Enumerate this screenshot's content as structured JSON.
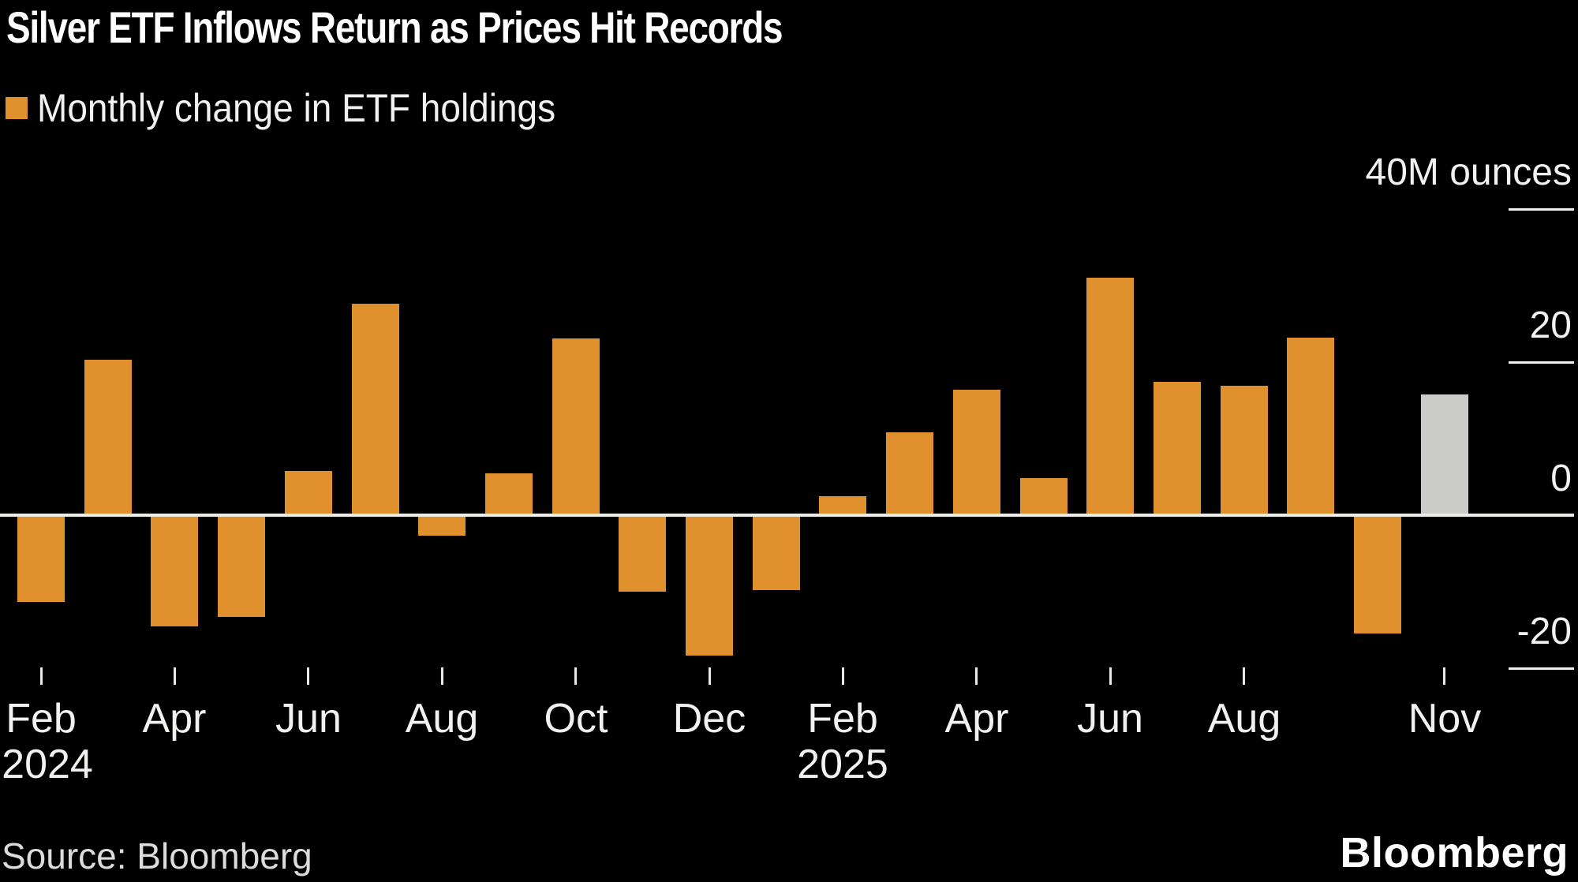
{
  "title": "Silver ETF Inflows Return as Prices Hit Records",
  "legend": {
    "label": "Monthly change in ETF holdings",
    "swatch_color": "#E0912D"
  },
  "source": "Source: Bloomberg",
  "logo": "Bloomberg",
  "colors": {
    "bar_orange": "#E0912D",
    "bar_gray": "#CBCBC9",
    "background": "#000000",
    "zero_line": "#EFEDE9",
    "axis_text": "#F2F1EF"
  },
  "chart_data": {
    "type": "bar",
    "title": "Silver ETF Inflows Return as Prices Hit Records",
    "series_name": "Monthly change in ETF holdings",
    "unit": "M ounces",
    "ylim": [
      -25,
      45
    ],
    "legend_position": "top-left",
    "grid": false,
    "points": [
      {
        "month": "Feb 2024",
        "value": -11.1
      },
      {
        "month": "Mar 2024",
        "value": 20.3
      },
      {
        "month": "Apr 2024",
        "value": -14.3
      },
      {
        "month": "May 2024",
        "value": -13.1
      },
      {
        "month": "Jun 2024",
        "value": 5.8
      },
      {
        "month": "Jul 2024",
        "value": 27.6
      },
      {
        "month": "Aug 2024",
        "value": -2.5
      },
      {
        "month": "Sep 2024",
        "value": 5.5
      },
      {
        "month": "Oct 2024",
        "value": 23.1
      },
      {
        "month": "Nov 2024",
        "value": -9.8
      },
      {
        "month": "Dec 2024",
        "value": -18.1
      },
      {
        "month": "Jan 2025",
        "value": -9.6
      },
      {
        "month": "Feb 2025",
        "value": 2.5
      },
      {
        "month": "Mar 2025",
        "value": 10.8
      },
      {
        "month": "Apr 2025",
        "value": 16.4
      },
      {
        "month": "May 2025",
        "value": 4.8
      },
      {
        "month": "Jun 2025",
        "value": 31.0
      },
      {
        "month": "Jul 2025",
        "value": 17.4
      },
      {
        "month": "Aug 2025",
        "value": 16.9
      },
      {
        "month": "Sep 2025",
        "value": 23.2
      },
      {
        "month": "Oct 2025",
        "value": -15.3
      },
      {
        "month": "Nov 2025",
        "value": 15.8,
        "color": "gray",
        "note": "partial month shown in gray"
      }
    ],
    "y_ticks": [
      {
        "value": 40,
        "label": "40M ounces"
      },
      {
        "value": 20,
        "label": "20"
      },
      {
        "value": 0,
        "label": "0"
      },
      {
        "value": -20,
        "label": "-20"
      }
    ],
    "x_ticks": [
      {
        "index": 0,
        "label": "Feb"
      },
      {
        "index": 2,
        "label": "Apr"
      },
      {
        "index": 4,
        "label": "Jun"
      },
      {
        "index": 6,
        "label": "Aug"
      },
      {
        "index": 8,
        "label": "Oct"
      },
      {
        "index": 10,
        "label": "Dec"
      },
      {
        "index": 12,
        "label": "Feb"
      },
      {
        "index": 14,
        "label": "Apr"
      },
      {
        "index": 16,
        "label": "Jun"
      },
      {
        "index": 18,
        "label": "Aug"
      },
      {
        "index": 21,
        "label": "Nov"
      }
    ],
    "year_labels": [
      {
        "index": 0,
        "label": "2024"
      },
      {
        "index": 12,
        "label": "2025"
      }
    ]
  }
}
